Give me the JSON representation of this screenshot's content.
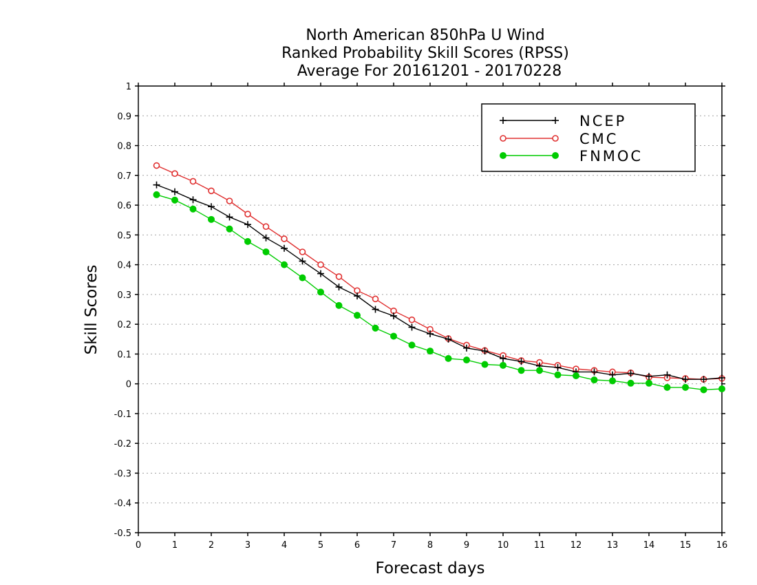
{
  "chart_data": {
    "type": "line",
    "title": [
      "North American 850hPa U Wind",
      "Ranked Probability Skill Scores (RPSS)",
      "Average For 20161201 - 20170228"
    ],
    "xlabel": "Forecast days",
    "ylabel": "Skill Scores",
    "xlim": [
      0,
      16
    ],
    "ylim": [
      -0.5,
      1
    ],
    "x_ticks": [
      0,
      1,
      2,
      3,
      4,
      5,
      6,
      7,
      8,
      9,
      10,
      11,
      12,
      13,
      14,
      15,
      16
    ],
    "x_tick_labels": [
      "0",
      "1",
      "2",
      "3",
      "4",
      "5",
      "6",
      "7",
      "8",
      "9",
      "10",
      "11",
      "12",
      "13",
      "14",
      "15",
      "16"
    ],
    "y_ticks": [
      -0.5,
      -0.4,
      -0.3,
      -0.2,
      -0.1,
      0,
      0.1,
      0.2,
      0.3,
      0.4,
      0.5,
      0.6,
      0.7,
      0.8,
      0.9,
      1
    ],
    "y_tick_labels": [
      "-0.5",
      "-0.4",
      "-0.3",
      "-0.2",
      "-0.1",
      "0",
      "0.1",
      "0.2",
      "0.3",
      "0.4",
      "0.5",
      "0.6",
      "0.7",
      "0.8",
      "0.9",
      "1"
    ],
    "grid": true,
    "legend_position": "top-right",
    "x": [
      0.5,
      1,
      1.5,
      2,
      2.5,
      3,
      3.5,
      4,
      4.5,
      5,
      5.5,
      6,
      6.5,
      7,
      7.5,
      8,
      8.5,
      9,
      9.5,
      10,
      10.5,
      11,
      11.5,
      12,
      12.5,
      13,
      13.5,
      14,
      14.5,
      15,
      15.5,
      16
    ],
    "series": [
      {
        "name": "NCEP",
        "color": "#000000",
        "marker": "plus",
        "values": [
          0.668,
          0.645,
          0.618,
          0.595,
          0.56,
          0.535,
          0.49,
          0.455,
          0.412,
          0.37,
          0.325,
          0.295,
          0.25,
          0.228,
          0.19,
          0.168,
          0.15,
          0.12,
          0.11,
          0.085,
          0.075,
          0.06,
          0.055,
          0.04,
          0.04,
          0.03,
          0.035,
          0.025,
          0.03,
          0.015,
          0.015,
          0.02
        ]
      },
      {
        "name": "CMC",
        "color": "#e03030",
        "marker": "open-circle",
        "values": [
          0.733,
          0.706,
          0.68,
          0.648,
          0.614,
          0.57,
          0.528,
          0.487,
          0.443,
          0.4,
          0.36,
          0.313,
          0.285,
          0.245,
          0.215,
          0.183,
          0.152,
          0.13,
          0.112,
          0.095,
          0.078,
          0.072,
          0.062,
          0.05,
          0.045,
          0.04,
          0.037,
          0.022,
          0.02,
          0.018,
          0.015,
          0.018
        ]
      },
      {
        "name": "FNMOC",
        "color": "#00cc00",
        "marker": "filled-circle",
        "values": [
          0.635,
          0.617,
          0.587,
          0.552,
          0.52,
          0.478,
          0.443,
          0.4,
          0.356,
          0.308,
          0.263,
          0.23,
          0.187,
          0.16,
          0.13,
          0.11,
          0.085,
          0.08,
          0.065,
          0.062,
          0.045,
          0.045,
          0.03,
          0.027,
          0.013,
          0.01,
          0.002,
          0.002,
          -0.012,
          -0.012,
          -0.02,
          -0.017
        ]
      }
    ]
  }
}
